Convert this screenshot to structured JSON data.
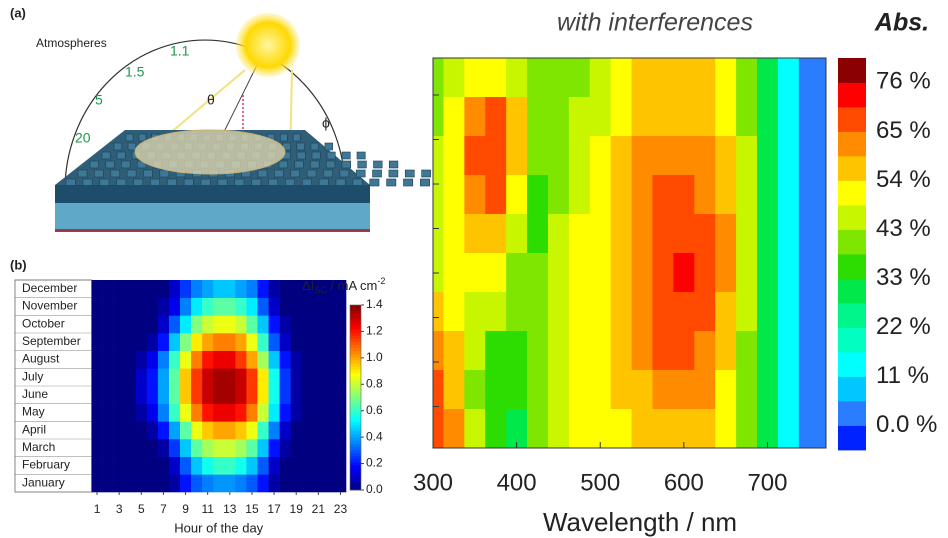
{
  "panel_a": {
    "letter": "(a)",
    "atmospheres": "Atmospheres",
    "air_mass_labels": [
      "1.1",
      "1.5",
      "5",
      "20"
    ],
    "theta": "θ",
    "phi": "ϕ"
  },
  "chart_data": [
    {
      "type": "heatmap",
      "letter": "(b)",
      "xlabel": "Hour of the day",
      "colorbar_label": [
        "ΔI",
        "SC",
        " / mA cm",
        "-2"
      ],
      "categories": [
        "January",
        "February",
        "March",
        "April",
        "May",
        "June",
        "July",
        "August",
        "September",
        "October",
        "November",
        "December"
      ],
      "x": [
        1,
        2,
        3,
        4,
        5,
        6,
        7,
        8,
        9,
        10,
        11,
        12,
        13,
        14,
        15,
        16,
        17,
        18,
        19,
        20,
        21,
        22,
        23
      ],
      "xlim": [
        0.5,
        23.5
      ],
      "xticks": [
        1,
        3,
        5,
        7,
        9,
        11,
        13,
        15,
        17,
        19,
        21,
        23
      ],
      "clim": [
        0,
        1.4
      ],
      "colorbar_ticks": [
        {
          "value": 0,
          "label": "0.0"
        },
        0.2,
        0.4,
        0.6,
        0.8,
        {
          "value": 1,
          "label": "1.0"
        },
        1.2,
        1.4
      ],
      "values": [
        [
          0,
          0,
          0,
          0,
          0,
          0,
          0,
          0.05,
          0.2,
          0.3,
          0.35,
          0.38,
          0.38,
          0.35,
          0.3,
          0.2,
          0.05,
          0,
          0,
          0,
          0,
          0,
          0
        ],
        [
          0,
          0,
          0,
          0,
          0,
          0,
          0,
          0.1,
          0.3,
          0.45,
          0.55,
          0.6,
          0.6,
          0.55,
          0.45,
          0.3,
          0.1,
          0,
          0,
          0,
          0,
          0,
          0
        ],
        [
          0,
          0,
          0,
          0,
          0,
          0,
          0.05,
          0.25,
          0.45,
          0.65,
          0.75,
          0.8,
          0.8,
          0.75,
          0.65,
          0.45,
          0.2,
          0.05,
          0,
          0,
          0,
          0,
          0
        ],
        [
          0,
          0,
          0,
          0,
          0,
          0.05,
          0.2,
          0.4,
          0.65,
          0.85,
          0.95,
          1.0,
          1.0,
          0.95,
          0.85,
          0.6,
          0.35,
          0.1,
          0,
          0,
          0,
          0,
          0
        ],
        [
          0,
          0,
          0,
          0,
          0.05,
          0.15,
          0.35,
          0.6,
          0.85,
          1.05,
          1.2,
          1.25,
          1.25,
          1.2,
          1.05,
          0.8,
          0.5,
          0.2,
          0.05,
          0,
          0,
          0,
          0
        ],
        [
          0,
          0,
          0,
          0,
          0.1,
          0.2,
          0.4,
          0.65,
          0.95,
          1.15,
          1.3,
          1.35,
          1.35,
          1.3,
          1.15,
          0.9,
          0.55,
          0.25,
          0.05,
          0,
          0,
          0,
          0
        ],
        [
          0,
          0,
          0,
          0,
          0.1,
          0.2,
          0.4,
          0.65,
          0.95,
          1.15,
          1.3,
          1.35,
          1.35,
          1.3,
          1.15,
          0.9,
          0.55,
          0.25,
          0.05,
          0,
          0,
          0,
          0
        ],
        [
          0,
          0,
          0,
          0,
          0.05,
          0.15,
          0.35,
          0.6,
          0.85,
          1.05,
          1.2,
          1.25,
          1.25,
          1.15,
          1.0,
          0.75,
          0.45,
          0.2,
          0.05,
          0,
          0,
          0,
          0
        ],
        [
          0,
          0,
          0,
          0,
          0,
          0.05,
          0.2,
          0.45,
          0.7,
          0.9,
          1.0,
          1.05,
          1.05,
          1.0,
          0.85,
          0.6,
          0.3,
          0.1,
          0,
          0,
          0,
          0,
          0
        ],
        [
          0,
          0,
          0,
          0,
          0,
          0,
          0.1,
          0.3,
          0.5,
          0.7,
          0.8,
          0.85,
          0.85,
          0.8,
          0.65,
          0.45,
          0.2,
          0.05,
          0,
          0,
          0,
          0,
          0
        ],
        [
          0,
          0,
          0,
          0,
          0,
          0,
          0.05,
          0.15,
          0.35,
          0.5,
          0.6,
          0.65,
          0.65,
          0.6,
          0.5,
          0.3,
          0.1,
          0,
          0,
          0,
          0,
          0,
          0
        ],
        [
          0,
          0,
          0,
          0,
          0,
          0,
          0,
          0.1,
          0.25,
          0.35,
          0.4,
          0.45,
          0.45,
          0.4,
          0.35,
          0.2,
          0.05,
          0,
          0,
          0,
          0,
          0,
          0
        ]
      ]
    },
    {
      "type": "contour",
      "title": "with interferences",
      "colorbar_title": "Abs.",
      "xlabel": "Wavelength / nm",
      "x": [
        300,
        325,
        350,
        375,
        400,
        425,
        450,
        475,
        500,
        525,
        550,
        575,
        600,
        625,
        650,
        675,
        700,
        725,
        750
      ],
      "xlim": [
        300,
        770
      ],
      "xticks": [
        300,
        400,
        500,
        600,
        700
      ],
      "zlim": [
        -5.4,
        81.4
      ],
      "colors": [
        "#0022ff",
        "#2a7dff",
        "#00c8ff",
        "#00ffff",
        "#00ffc0",
        "#00f58a",
        "#00e84a",
        "#2ddc00",
        "#7ee600",
        "#c8f500",
        "#ffff00",
        "#ffc400",
        "#ff8c00",
        "#ff4a00",
        "#ff0000",
        "#8b0000"
      ],
      "colorbar_ticks": [
        {
          "value": 0,
          "label": "0.0 %"
        },
        {
          "value": 10.86,
          "label": "11 %"
        },
        {
          "value": 21.71,
          "label": "22 %"
        },
        {
          "value": 32.57,
          "label": "33 %"
        },
        {
          "value": 43.43,
          "label": "43 %"
        },
        {
          "value": 54.29,
          "label": "54 %"
        },
        {
          "value": 65.14,
          "label": "65 %"
        },
        {
          "value": 76,
          "label": "76 %"
        }
      ],
      "values": [
        [
          40,
          45,
          50,
          52,
          45,
          40,
          40,
          42,
          45,
          50,
          55,
          57,
          57,
          55,
          50,
          40,
          28,
          12,
          5
        ],
        [
          42,
          50,
          62,
          68,
          55,
          42,
          42,
          45,
          48,
          52,
          56,
          58,
          58,
          56,
          52,
          42,
          30,
          12,
          5
        ],
        [
          44,
          52,
          66,
          70,
          55,
          40,
          42,
          47,
          50,
          55,
          60,
          62,
          62,
          60,
          55,
          44,
          30,
          12,
          5
        ],
        [
          45,
          52,
          64,
          67,
          50,
          38,
          42,
          48,
          52,
          57,
          62,
          66,
          67,
          65,
          58,
          45,
          30,
          12,
          5
        ],
        [
          45,
          50,
          58,
          58,
          45,
          38,
          44,
          50,
          54,
          58,
          64,
          68,
          70,
          68,
          60,
          45,
          30,
          12,
          5
        ],
        [
          48,
          50,
          52,
          50,
          42,
          40,
          46,
          50,
          54,
          58,
          64,
          68,
          71,
          70,
          60,
          45,
          30,
          12,
          5
        ],
        [
          55,
          52,
          48,
          44,
          40,
          42,
          47,
          51,
          54,
          58,
          63,
          68,
          70,
          68,
          58,
          44,
          30,
          12,
          5
        ],
        [
          62,
          55,
          44,
          38,
          36,
          42,
          48,
          50,
          53,
          57,
          62,
          66,
          67,
          64,
          56,
          43,
          30,
          12,
          5
        ],
        [
          66,
          58,
          42,
          36,
          33,
          40,
          48,
          50,
          52,
          55,
          58,
          62,
          62,
          60,
          54,
          42,
          30,
          12,
          5
        ],
        [
          68,
          60,
          44,
          36,
          32,
          40,
          48,
          50,
          52,
          54,
          56,
          58,
          58,
          57,
          52,
          41,
          30,
          12,
          5
        ]
      ]
    }
  ]
}
